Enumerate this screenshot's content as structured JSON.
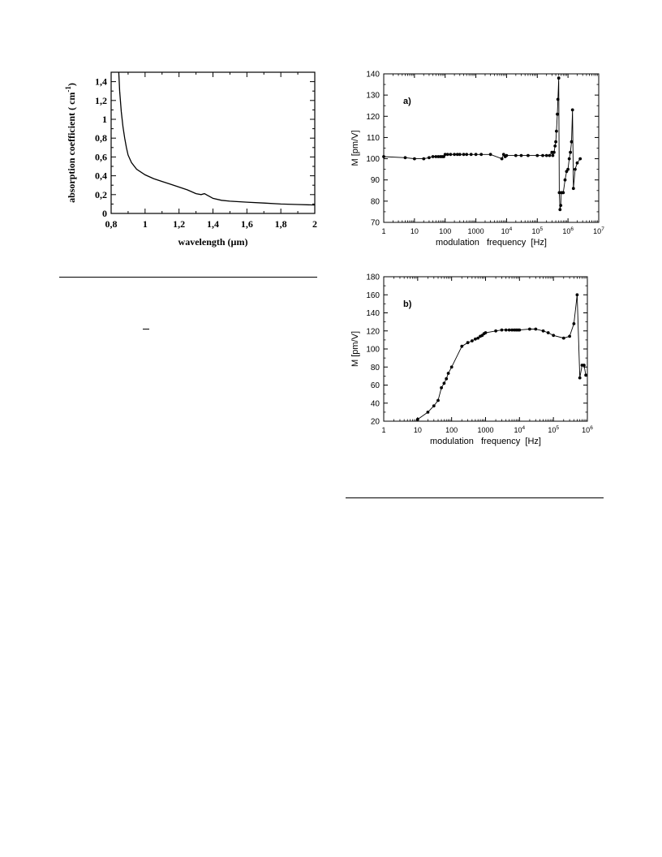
{
  "chart_data": [
    {
      "type": "line",
      "xlabel": "wavelength (µm)",
      "ylabel": "absorption coefficient ( cm",
      "ylabel_sup": "-1",
      "ylabel_end": ")",
      "xlim": [
        0.8,
        2.0
      ],
      "ylim": [
        0,
        1.5
      ],
      "x_ticks": [
        0.8,
        1.0,
        1.2,
        1.4,
        1.6,
        1.8,
        2.0
      ],
      "x_tick_labels": [
        "0,8",
        "1",
        "1,2",
        "1,4",
        "1,6",
        "1,8",
        "2"
      ],
      "y_ticks": [
        0,
        0.2,
        0.4,
        0.6,
        0.8,
        1.0,
        1.2,
        1.4
      ],
      "y_tick_labels": [
        "0",
        "0,2",
        "0,4",
        "0,6",
        "0,8",
        "1",
        "1,2",
        "1,4"
      ],
      "grid": false,
      "series": [
        {
          "x": [
            0.845,
            0.85,
            0.86,
            0.87,
            0.88,
            0.89,
            0.9,
            0.92,
            0.95,
            1.0,
            1.05,
            1.1,
            1.15,
            1.2,
            1.25,
            1.3,
            1.33,
            1.35,
            1.38,
            1.4,
            1.45,
            1.5,
            1.6,
            1.7,
            1.8,
            1.9,
            2.0
          ],
          "y": [
            1.5,
            1.3,
            1.08,
            0.92,
            0.8,
            0.7,
            0.62,
            0.54,
            0.47,
            0.41,
            0.37,
            0.34,
            0.31,
            0.28,
            0.25,
            0.21,
            0.2,
            0.21,
            0.18,
            0.16,
            0.14,
            0.13,
            0.12,
            0.11,
            0.1,
            0.095,
            0.09
          ]
        }
      ]
    },
    {
      "type": "line",
      "panel_label": "a)",
      "xlabel": "modulation   frequency  [Hz]",
      "ylabel": "M [pm/V]",
      "x_scale": "log",
      "xlim": [
        1,
        10000000
      ],
      "ylim": [
        70,
        140
      ],
      "x_tick_labels": [
        {
          "base": "1",
          "exp": ""
        },
        {
          "base": "10",
          "exp": ""
        },
        {
          "base": "100",
          "exp": ""
        },
        {
          "base": "1000",
          "exp": ""
        },
        {
          "base": "10",
          "exp": "4"
        },
        {
          "base": "10",
          "exp": "5"
        },
        {
          "base": "10",
          "exp": "6"
        },
        {
          "base": "10",
          "exp": "7"
        }
      ],
      "y_ticks": [
        70,
        80,
        90,
        100,
        110,
        120,
        130,
        140
      ],
      "y_tick_labels": [
        "70",
        "80",
        "90",
        "100",
        "110",
        "120",
        "130",
        "140"
      ],
      "grid": false,
      "series": [
        {
          "x": [
            1,
            5,
            10,
            20,
            30,
            40,
            50,
            60,
            70,
            80,
            90,
            100,
            120,
            150,
            200,
            250,
            300,
            400,
            500,
            700,
            1000,
            1500,
            3000,
            7000,
            8000,
            9000,
            10000,
            20000,
            30000,
            50000,
            100000,
            150000,
            200000,
            250000,
            300000,
            320000,
            350000,
            380000,
            400000,
            420000,
            450000,
            470000,
            500000,
            520000,
            550000,
            580000,
            600000,
            650000,
            700000,
            800000,
            900000,
            1000000,
            1100000,
            1200000,
            1300000,
            1400000,
            1500000,
            1700000,
            2000000,
            2500000
          ],
          "y": [
            101,
            100.5,
            100,
            100,
            100.5,
            101,
            101,
            101,
            101,
            101,
            101,
            102,
            102,
            102,
            102,
            102,
            102,
            102,
            102,
            102,
            102,
            102,
            102,
            100,
            102,
            101,
            101.5,
            101.5,
            101.5,
            101.5,
            101.5,
            101.5,
            101.5,
            101.5,
            103,
            101.5,
            103,
            106,
            108,
            113,
            121,
            128,
            138,
            84,
            76,
            78,
            84,
            84,
            84,
            90,
            94,
            95,
            100,
            103,
            108,
            123,
            86,
            95,
            98,
            100
          ]
        }
      ]
    },
    {
      "type": "line",
      "panel_label": "b)",
      "xlabel": "modulation   frequency  [Hz]",
      "ylabel": "M [pm/V]",
      "x_scale": "log",
      "xlim": [
        1,
        1000000
      ],
      "ylim": [
        20,
        180
      ],
      "x_tick_labels": [
        {
          "base": "1",
          "exp": ""
        },
        {
          "base": "10",
          "exp": ""
        },
        {
          "base": "100",
          "exp": ""
        },
        {
          "base": "1000",
          "exp": ""
        },
        {
          "base": "10",
          "exp": "4"
        },
        {
          "base": "10",
          "exp": "5"
        },
        {
          "base": "10",
          "exp": "6"
        }
      ],
      "y_ticks": [
        20,
        40,
        60,
        80,
        100,
        120,
        140,
        160,
        180
      ],
      "y_tick_labels": [
        "20",
        "40",
        "60",
        "80",
        "100",
        "120",
        "140",
        "160",
        "180"
      ],
      "grid": false,
      "series": [
        {
          "x": [
            10,
            20,
            30,
            40,
            50,
            60,
            70,
            80,
            100,
            200,
            300,
            400,
            500,
            600,
            700,
            800,
            900,
            1000,
            2000,
            3000,
            4000,
            5000,
            6000,
            7000,
            8000,
            9000,
            10000,
            20000,
            30000,
            50000,
            70000,
            100000,
            200000,
            300000,
            400000,
            500000,
            600000,
            700000,
            800000,
            900000
          ],
          "y": [
            22,
            30,
            37,
            43,
            57,
            62,
            67,
            73,
            80,
            103,
            107,
            109,
            111,
            112,
            114,
            115,
            117,
            118,
            120,
            121,
            121,
            121,
            121,
            121,
            121,
            121,
            121,
            122,
            122,
            120,
            118,
            115,
            112,
            114,
            128,
            160,
            68,
            82,
            82,
            71
          ]
        }
      ]
    }
  ]
}
